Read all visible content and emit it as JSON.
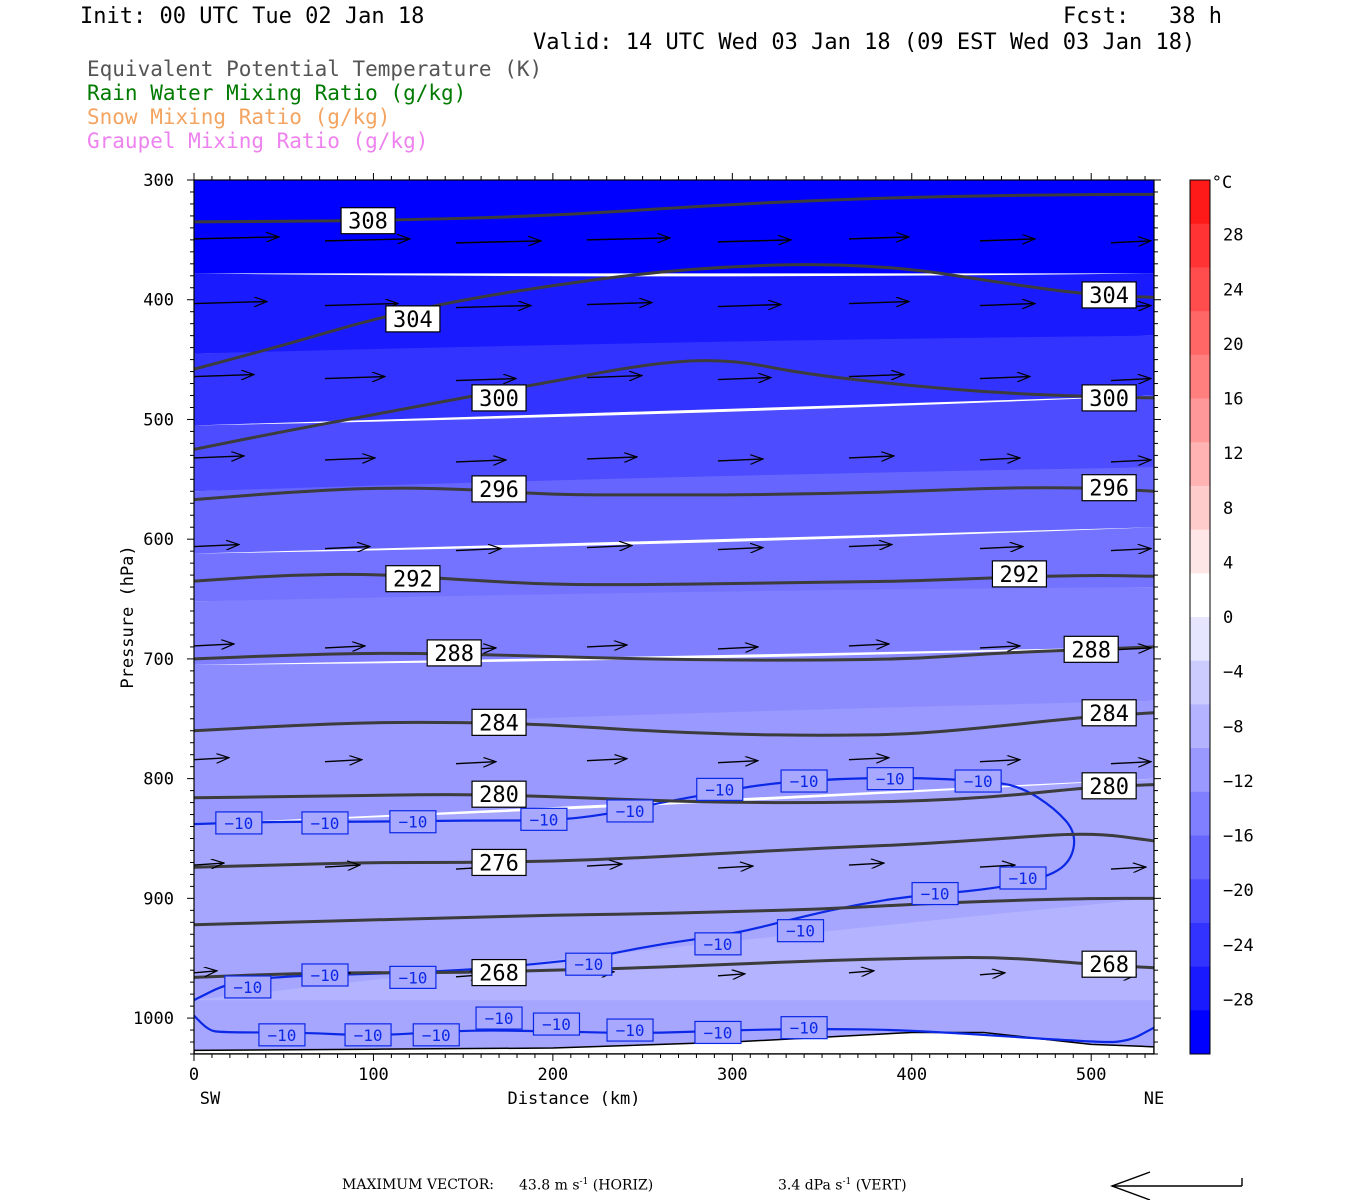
{
  "header": {
    "init": "Init: 00 UTC Tue 02 Jan 18",
    "fcst": "Fcst:   38 h",
    "valid": "Valid: 14 UTC Wed 03 Jan 18 (09 EST Wed 03 Jan 18)"
  },
  "legend": {
    "items": [
      {
        "label": "Equivalent Potential Temperature (K)",
        "color": "#555555"
      },
      {
        "label": "Rain Water Mixing Ratio (g/kg)",
        "color": "#007a00"
      },
      {
        "label": "Snow Mixing Ratio (g/kg)",
        "color": "#f4a460"
      },
      {
        "label": "Graupel Mixing Ratio (g/kg)",
        "color": "#ee82ee"
      }
    ]
  },
  "footer": {
    "max_vector_label": "MAXIMUM VECTOR:",
    "horiz": "43.8 m s",
    "horiz_exp": "-1",
    "horiz_tag": "(HORIZ)",
    "vert": "3.4 dPa s",
    "vert_exp": "-1",
    "vert_tag": "(VERT)"
  },
  "chart_data": {
    "type": "cross-section",
    "xlabel": "Distance (km)",
    "ylabel": "Pressure (hPa)",
    "x_ticks": [
      "0",
      "100",
      "200",
      "300",
      "400",
      "500"
    ],
    "x_end_labels": {
      "left": "SW",
      "right": "NE"
    },
    "xlim": [
      0,
      535
    ],
    "y_ticks": [
      "300",
      "400",
      "500",
      "600",
      "700",
      "800",
      "900",
      "1000"
    ],
    "ylim": [
      300,
      1030
    ],
    "y_scale": "linear",
    "colorbar": {
      "unit": "°C",
      "tick_labels": [
        "28",
        "24",
        "20",
        "16",
        "12",
        "8",
        "4",
        "0",
        "−4",
        "−8",
        "−12",
        "−16",
        "−20",
        "−24",
        "−28"
      ],
      "range": [
        -32,
        32
      ],
      "colors_top_to_bottom": [
        "#ff1a1a",
        "#ff3333",
        "#ff4d4d",
        "#ff6666",
        "#ff7f7f",
        "#ff9999",
        "#ffb3b3",
        "#ffcccc",
        "#ffe6e6",
        "#ffffff",
        "#e6e6ff",
        "#ccccff",
        "#b3b3ff",
        "#9999ff",
        "#7f7fff",
        "#6666ff",
        "#4d4dff",
        "#3333ff",
        "#1a1aff",
        "#0000ff"
      ]
    },
    "theta_e_contours": [
      {
        "level": "308",
        "points": [
          [
            0,
            335
          ],
          [
            100,
            334
          ],
          [
            200,
            330
          ],
          [
            300,
            320
          ],
          [
            400,
            314
          ],
          [
            500,
            312
          ],
          [
            535,
            312
          ]
        ],
        "labels": [
          [
            97,
            334
          ]
        ]
      },
      {
        "level": "304",
        "points": [
          [
            0,
            458
          ],
          [
            50,
            438
          ],
          [
            100,
            416
          ],
          [
            150,
            400
          ],
          [
            200,
            388
          ],
          [
            250,
            378
          ],
          [
            300,
            372
          ],
          [
            350,
            370
          ],
          [
            400,
            374
          ],
          [
            450,
            386
          ],
          [
            500,
            396
          ],
          [
            535,
            398
          ]
        ],
        "labels": [
          [
            122,
            416
          ],
          [
            510,
            396
          ]
        ]
      },
      {
        "level": "300",
        "points": [
          [
            0,
            525
          ],
          [
            50,
            510
          ],
          [
            100,
            496
          ],
          [
            150,
            482
          ],
          [
            200,
            468
          ],
          [
            260,
            452
          ],
          [
            300,
            450
          ],
          [
            340,
            462
          ],
          [
            400,
            472
          ],
          [
            450,
            478
          ],
          [
            500,
            481
          ],
          [
            535,
            482
          ]
        ],
        "labels": [
          [
            170,
            482
          ],
          [
            510,
            482
          ]
        ]
      },
      {
        "level": "296",
        "points": [
          [
            0,
            567
          ],
          [
            50,
            561
          ],
          [
            100,
            557
          ],
          [
            150,
            558
          ],
          [
            200,
            563
          ],
          [
            250,
            563
          ],
          [
            300,
            563
          ],
          [
            350,
            562
          ],
          [
            400,
            560
          ],
          [
            450,
            557
          ],
          [
            500,
            557
          ],
          [
            535,
            560
          ]
        ],
        "labels": [
          [
            170,
            558
          ],
          [
            510,
            557
          ]
        ]
      },
      {
        "level": "292",
        "points": [
          [
            0,
            635
          ],
          [
            50,
            630
          ],
          [
            100,
            629
          ],
          [
            150,
            634
          ],
          [
            200,
            638
          ],
          [
            250,
            638
          ],
          [
            300,
            637
          ],
          [
            350,
            636
          ],
          [
            400,
            635
          ],
          [
            450,
            632
          ],
          [
            500,
            630
          ],
          [
            535,
            631
          ]
        ],
        "labels": [
          [
            122,
            633
          ],
          [
            460,
            629
          ]
        ]
      },
      {
        "level": "288",
        "points": [
          [
            0,
            700
          ],
          [
            50,
            697
          ],
          [
            100,
            695
          ],
          [
            150,
            696
          ],
          [
            200,
            698
          ],
          [
            250,
            700
          ],
          [
            300,
            701
          ],
          [
            350,
            701
          ],
          [
            400,
            700
          ],
          [
            450,
            695
          ],
          [
            500,
            692
          ],
          [
            535,
            690
          ]
        ],
        "labels": [
          [
            145,
            695
          ],
          [
            500,
            692
          ]
        ]
      },
      {
        "level": "284",
        "points": [
          [
            0,
            760
          ],
          [
            50,
            756
          ],
          [
            100,
            753
          ],
          [
            150,
            753
          ],
          [
            200,
            755
          ],
          [
            250,
            760
          ],
          [
            300,
            763
          ],
          [
            350,
            764
          ],
          [
            400,
            763
          ],
          [
            450,
            756
          ],
          [
            500,
            748
          ],
          [
            535,
            745
          ]
        ],
        "labels": [
          [
            170,
            753
          ],
          [
            510,
            745
          ]
        ]
      },
      {
        "level": "280",
        "points": [
          [
            0,
            816
          ],
          [
            50,
            815
          ],
          [
            100,
            814
          ],
          [
            150,
            813
          ],
          [
            200,
            815
          ],
          [
            250,
            818
          ],
          [
            300,
            820
          ],
          [
            350,
            820
          ],
          [
            400,
            819
          ],
          [
            450,
            815
          ],
          [
            500,
            807
          ],
          [
            535,
            805
          ]
        ],
        "labels": [
          [
            170,
            813
          ],
          [
            510,
            806
          ]
        ]
      },
      {
        "level": "276",
        "points": [
          [
            0,
            874
          ],
          [
            50,
            872
          ],
          [
            100,
            870
          ],
          [
            150,
            870
          ],
          [
            200,
            869
          ],
          [
            250,
            866
          ],
          [
            300,
            862
          ],
          [
            350,
            858
          ],
          [
            400,
            855
          ],
          [
            450,
            850
          ],
          [
            500,
            845
          ],
          [
            535,
            852
          ]
        ],
        "labels": [
          [
            170,
            870
          ]
        ]
      },
      {
        "level": "",
        "points": [
          [
            0,
            922
          ],
          [
            50,
            920
          ],
          [
            100,
            918
          ],
          [
            150,
            916
          ],
          [
            200,
            914
          ],
          [
            250,
            913
          ],
          [
            300,
            911
          ],
          [
            350,
            909
          ],
          [
            400,
            905
          ],
          [
            450,
            902
          ],
          [
            500,
            900
          ],
          [
            535,
            900
          ]
        ],
        "labels": []
      },
      {
        "level": "268",
        "points": [
          [
            0,
            966
          ],
          [
            50,
            963
          ],
          [
            100,
            962
          ],
          [
            150,
            962
          ],
          [
            200,
            960
          ],
          [
            250,
            958
          ],
          [
            300,
            955
          ],
          [
            350,
            952
          ],
          [
            400,
            950
          ],
          [
            450,
            949
          ],
          [
            500,
            955
          ],
          [
            535,
            958
          ]
        ],
        "labels": [
          [
            170,
            962
          ],
          [
            510,
            955
          ]
        ]
      }
    ],
    "temp_contour_label": "−10",
    "temp_contours": [
      {
        "level": "−10",
        "points": [
          [
            0,
            838
          ],
          [
            40,
            836
          ],
          [
            100,
            836
          ],
          [
            150,
            835
          ],
          [
            200,
            835
          ],
          [
            230,
            830
          ],
          [
            260,
            820
          ],
          [
            290,
            812
          ],
          [
            320,
            804
          ],
          [
            360,
            800
          ],
          [
            400,
            799
          ],
          [
            440,
            802
          ],
          [
            460,
            806
          ],
          [
            480,
            825
          ],
          [
            492,
            846
          ],
          [
            488,
            872
          ],
          [
            470,
            885
          ],
          [
            440,
            893
          ],
          [
            400,
            898
          ],
          [
            370,
            905
          ],
          [
            340,
            915
          ],
          [
            300,
            930
          ],
          [
            260,
            938
          ],
          [
            220,
            950
          ],
          [
            190,
            955
          ],
          [
            150,
            960
          ],
          [
            100,
            963
          ],
          [
            50,
            965
          ],
          [
            20,
            970
          ],
          [
            0,
            985
          ]
        ],
        "labels": [
          [
            25,
            837
          ],
          [
            73,
            837
          ],
          [
            122,
            836
          ],
          [
            195,
            834
          ],
          [
            243,
            827
          ],
          [
            293,
            809
          ],
          [
            340,
            802
          ],
          [
            388,
            800
          ],
          [
            437,
            802
          ],
          [
            462,
            883
          ],
          [
            413,
            896
          ],
          [
            338,
            927
          ],
          [
            292,
            938
          ],
          [
            220,
            955
          ],
          [
            73,
            964
          ],
          [
            122,
            966
          ],
          [
            30,
            974
          ]
        ]
      },
      {
        "level": "−10",
        "points": [
          [
            0,
            998
          ],
          [
            8,
            1010
          ],
          [
            15,
            1012
          ],
          [
            60,
            1012
          ],
          [
            100,
            1015
          ],
          [
            150,
            1010
          ],
          [
            200,
            1011
          ],
          [
            250,
            1013
          ],
          [
            300,
            1010
          ],
          [
            350,
            1009
          ],
          [
            400,
            1010
          ],
          [
            500,
            1020
          ],
          [
            520,
            1020
          ],
          [
            535,
            1008
          ]
        ],
        "labels": [
          [
            49,
            1014
          ],
          [
            97,
            1014
          ],
          [
            135,
            1014
          ],
          [
            170,
            1000
          ],
          [
            202,
            1005
          ],
          [
            243,
            1010
          ],
          [
            292,
            1012
          ],
          [
            340,
            1008
          ]
        ]
      }
    ],
    "wind_rows": [
      {
        "p": 350,
        "xs": [
          0,
          73,
          146,
          219,
          292,
          365,
          438,
          511
        ],
        "len": [
          70,
          70,
          70,
          68,
          58,
          45,
          40,
          25
        ]
      },
      {
        "p": 404,
        "xs": [
          0,
          73,
          146,
          219,
          292,
          365,
          438,
          511
        ],
        "len": [
          58,
          58,
          60,
          50,
          48,
          45,
          40,
          25
        ]
      },
      {
        "p": 465,
        "xs": [
          0,
          73,
          146,
          219,
          292,
          365,
          438,
          511
        ],
        "len": [
          45,
          45,
          45,
          40,
          38,
          40,
          35,
          25
        ]
      },
      {
        "p": 533,
        "xs": [
          0,
          73,
          146,
          219,
          292,
          365,
          438,
          511
        ],
        "len": [
          35,
          35,
          35,
          35,
          30,
          30,
          25,
          25
        ]
      },
      {
        "p": 607,
        "xs": [
          0,
          73,
          146,
          219,
          292,
          365,
          438,
          511
        ],
        "len": [
          30,
          30,
          30,
          30,
          30,
          28,
          28,
          25
        ]
      },
      {
        "p": 690,
        "xs": [
          0,
          73,
          146,
          219,
          292,
          365,
          438,
          511
        ],
        "len": [
          25,
          25,
          25,
          25,
          25,
          25,
          25,
          25
        ]
      },
      {
        "p": 785,
        "xs": [
          0,
          73,
          146,
          219,
          292,
          365,
          438,
          511
        ],
        "len": [
          20,
          22,
          25,
          25,
          25,
          25,
          25,
          25
        ]
      },
      {
        "p": 873,
        "xs": [
          0,
          73,
          146,
          219,
          292,
          365,
          438,
          511
        ],
        "len": [
          15,
          20,
          20,
          20,
          20,
          20,
          20,
          20
        ]
      },
      {
        "p": 963,
        "xs": [
          0,
          73,
          146,
          219,
          292,
          365,
          438,
          511
        ],
        "len": [
          8,
          10,
          12,
          12,
          12,
          10,
          10,
          10
        ]
      }
    ]
  }
}
